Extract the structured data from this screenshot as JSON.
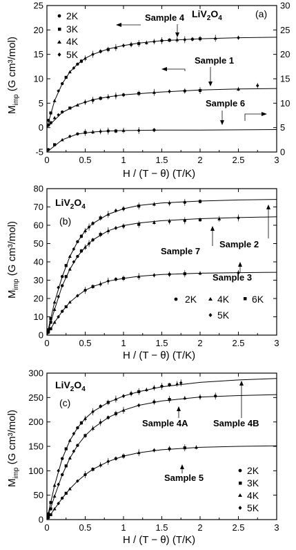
{
  "chart_data": [
    {
      "type": "scatter",
      "panel_label": "(a)",
      "compound": {
        "base": "LiV",
        "sub1": "2",
        "mid": "O",
        "sub2": "4"
      },
      "xlabel": "H / (T − θ) (T/K)",
      "ylabel": {
        "main": "M",
        "sub": "imp",
        "unit": " (G cm³/mol)"
      },
      "xlim": [
        0,
        3
      ],
      "ylim": [
        -5,
        25
      ],
      "y2lim": [
        0,
        30
      ],
      "xticks": [
        "0",
        "0.5",
        "1",
        "1.5",
        "2",
        "2.5",
        "3"
      ],
      "yticks": [
        "-5",
        "0",
        "5",
        "10",
        "15",
        "20",
        "25"
      ],
      "y2ticks": [
        "0",
        "5",
        "10",
        "15",
        "20",
        "25",
        "30"
      ],
      "legend": {
        "placement": "top-left",
        "entries": [
          {
            "label": "2K",
            "marker": "circle"
          },
          {
            "label": "3K",
            "marker": "square"
          },
          {
            "label": "4K",
            "marker": "triangle"
          },
          {
            "label": "5K",
            "marker": "diamond"
          }
        ]
      },
      "annotations": [
        {
          "text": "Sample 4",
          "x": 1.35,
          "y": 22.0
        },
        {
          "text": "Sample 1",
          "x": 2.0,
          "y": 11.8
        },
        {
          "text": "Sample 6",
          "x": 2.02,
          "y": 2.5
        }
      ],
      "series": [
        {
          "name": "Sample 4",
          "axis": "left",
          "x": [
            0.02,
            0.05,
            0.1,
            0.15,
            0.2,
            0.25,
            0.3,
            0.35,
            0.4,
            0.45,
            0.5,
            0.6,
            0.7,
            0.8,
            0.9,
            1.0,
            1.1,
            1.2,
            1.3,
            1.4,
            1.5,
            1.6,
            1.7,
            1.8,
            1.9,
            2.0,
            2.2,
            2.5
          ],
          "y": [
            1.5,
            3.0,
            5.5,
            7.5,
            9.0,
            10.3,
            11.4,
            12.2,
            13.0,
            13.6,
            14.2,
            15.0,
            15.6,
            16.0,
            16.4,
            16.8,
            17.0,
            17.2,
            17.4,
            17.6,
            17.8,
            17.9,
            18.0,
            18.0,
            18.1,
            18.2,
            18.3,
            18.4
          ],
          "fit_x": [
            0,
            0.1,
            0.2,
            0.3,
            0.4,
            0.5,
            0.6,
            0.8,
            1.0,
            1.2,
            1.5,
            2.0,
            2.5,
            3.0
          ],
          "fit_y": [
            0,
            5.5,
            9.0,
            11.4,
            13.0,
            14.2,
            15.0,
            16.1,
            16.8,
            17.3,
            17.8,
            18.2,
            18.4,
            18.5
          ]
        },
        {
          "name": "Sample 1",
          "axis": "left",
          "x": [
            0.02,
            0.05,
            0.1,
            0.15,
            0.2,
            0.3,
            0.4,
            0.5,
            0.6,
            0.7,
            0.8,
            0.9,
            1.0,
            1.2,
            1.4,
            1.6,
            1.8,
            2.0,
            2.5,
            2.75
          ],
          "y": [
            0.5,
            1.0,
            2.0,
            2.6,
            3.2,
            4.0,
            4.6,
            5.2,
            5.6,
            6.0,
            6.3,
            6.5,
            6.7,
            7.0,
            7.2,
            7.4,
            7.5,
            7.6,
            7.9,
            8.6
          ],
          "fit_x": [
            0,
            0.2,
            0.4,
            0.6,
            0.8,
            1.0,
            1.5,
            2.0,
            2.5,
            3.0
          ],
          "fit_y": [
            0,
            3.1,
            4.7,
            5.7,
            6.3,
            6.7,
            7.3,
            7.7,
            7.9,
            8.0
          ]
        },
        {
          "name": "Sample 6",
          "axis": "right",
          "x": [
            0.02,
            0.1,
            0.2,
            0.3,
            0.4,
            0.5,
            0.6,
            0.7,
            0.8,
            0.9,
            1.0,
            1.2,
            1.4
          ],
          "y": [
            0.5,
            1.5,
            2.5,
            3.2,
            3.7,
            4.0,
            4.1,
            4.2,
            4.3,
            4.3,
            4.4,
            4.4,
            4.5
          ],
          "fit_x": [
            0,
            0.2,
            0.4,
            0.6,
            0.8,
            1.0,
            1.5,
            2.0,
            3.0
          ],
          "fit_y": [
            0,
            2.5,
            3.7,
            4.1,
            4.3,
            4.4,
            4.5,
            4.5,
            4.6
          ]
        }
      ]
    },
    {
      "type": "scatter",
      "panel_label": "(b)",
      "compound": {
        "base": "LiV",
        "sub1": "2",
        "mid": "O",
        "sub2": "4"
      },
      "xlabel": "H / (T − θ) (T/K)",
      "ylabel": {
        "main": "M",
        "sub": "imp",
        "unit": " (G cm³/mol)"
      },
      "xlim": [
        0,
        3
      ],
      "ylim": [
        0,
        80
      ],
      "xticks": [
        "0",
        "0.5",
        "1",
        "1.5",
        "2",
        "2.5",
        "3"
      ],
      "yticks": [
        "0",
        "10",
        "20",
        "30",
        "40",
        "50",
        "60",
        "70",
        "80"
      ],
      "legend": {
        "placement": "bottom-right",
        "entries": [
          {
            "label": "2K",
            "marker": "circle"
          },
          {
            "label": "4K",
            "marker": "triangle"
          },
          {
            "label": "6K",
            "marker": "square"
          },
          {
            "label": "5K",
            "marker": "diamond"
          }
        ]
      },
      "annotations": [
        {
          "text": "Sample 7",
          "x": 1.55,
          "y": 53.5
        },
        {
          "text": "Sample 2",
          "x": 2.3,
          "y": 56.0
        },
        {
          "text": "Sample 3",
          "x": 2.13,
          "y": 27.5
        }
      ],
      "series": [
        {
          "name": "Sample 2",
          "x": [
            0.02,
            0.05,
            0.1,
            0.15,
            0.2,
            0.25,
            0.3,
            0.35,
            0.4,
            0.45,
            0.5,
            0.55,
            0.6,
            0.7,
            0.8,
            0.9,
            1.0,
            1.2,
            1.4,
            1.6,
            1.8,
            2.0
          ],
          "y": [
            3,
            9,
            18,
            26,
            32,
            38,
            43,
            47,
            51,
            54,
            57,
            59,
            61,
            64,
            66,
            68,
            69,
            70.5,
            71.5,
            72,
            72.5,
            73
          ],
          "fit_x": [
            0,
            0.1,
            0.2,
            0.3,
            0.4,
            0.5,
            0.6,
            0.8,
            1.0,
            1.2,
            1.5,
            2.0,
            2.5,
            3.0
          ],
          "fit_y": [
            0,
            18,
            32,
            43,
            51,
            57,
            61,
            66,
            69,
            70.8,
            72.2,
            73.2,
            73.8,
            74.1
          ]
        },
        {
          "name": "Sample 7",
          "x": [
            0.02,
            0.05,
            0.1,
            0.15,
            0.2,
            0.25,
            0.3,
            0.35,
            0.4,
            0.45,
            0.5,
            0.55,
            0.6,
            0.7,
            0.8,
            0.9,
            1.0,
            1.2,
            1.4,
            1.6,
            1.8,
            2.0,
            2.25,
            2.5
          ],
          "y": [
            2,
            7,
            14,
            21,
            27,
            32,
            36,
            40,
            43,
            46,
            48,
            50,
            52,
            55,
            57,
            58.5,
            59.5,
            60.5,
            61.5,
            62,
            62.5,
            63,
            63.5,
            64
          ],
          "fit_x": [
            0,
            0.1,
            0.2,
            0.3,
            0.4,
            0.5,
            0.6,
            0.8,
            1.0,
            1.2,
            1.5,
            2.0,
            2.5,
            3.0
          ],
          "fit_y": [
            0,
            14,
            27,
            36,
            43,
            48,
            52,
            57,
            59.8,
            61.2,
            62.5,
            63.6,
            64.2,
            64.6
          ]
        },
        {
          "name": "Sample 3",
          "x": [
            0.02,
            0.05,
            0.1,
            0.15,
            0.2,
            0.25,
            0.3,
            0.4,
            0.5,
            0.6,
            0.7,
            0.8,
            0.9,
            1.0,
            1.2,
            1.4,
            1.6,
            1.8,
            2.0,
            2.5
          ],
          "y": [
            1.5,
            3.5,
            7,
            10,
            13,
            15.5,
            18,
            21.5,
            24.5,
            26.5,
            28,
            29.5,
            30.5,
            31,
            32,
            32.7,
            33.2,
            33.5,
            33.8,
            34
          ],
          "fit_x": [
            0,
            0.1,
            0.2,
            0.3,
            0.4,
            0.5,
            0.6,
            0.8,
            1.0,
            1.2,
            1.5,
            2.0,
            2.5,
            3.0
          ],
          "fit_y": [
            0,
            7,
            13,
            18,
            21.5,
            24.5,
            26.5,
            29.5,
            31,
            32.1,
            33.1,
            33.8,
            34.1,
            34.3
          ]
        }
      ]
    },
    {
      "type": "scatter",
      "panel_label": "(c)",
      "compound": {
        "base": "LiV",
        "sub1": "2",
        "mid": "O",
        "sub2": "4"
      },
      "xlabel": "H / (T − θ) (T/K)",
      "ylabel": {
        "main": "M",
        "sub": "imp",
        "unit": " (G cm³/mol)"
      },
      "xlim": [
        0,
        3
      ],
      "ylim": [
        0,
        300
      ],
      "xticks": [
        "0",
        "0.5",
        "1",
        "1.5",
        "2",
        "2.5",
        "3"
      ],
      "yticks": [
        "0",
        "50",
        "100",
        "150",
        "200",
        "250",
        "300"
      ],
      "legend": {
        "placement": "bottom-right",
        "entries": [
          {
            "label": "2K",
            "marker": "circle"
          },
          {
            "label": "3K",
            "marker": "square"
          },
          {
            "label": "4K",
            "marker": "triangle"
          },
          {
            "label": "5K",
            "marker": "diamond"
          }
        ]
      },
      "annotations": [
        {
          "text": "Sample 4A",
          "x": 1.25,
          "y": 205
        },
        {
          "text": "Sample 4B",
          "x": 2.17,
          "y": 210
        },
        {
          "text": "Sample 5",
          "x": 1.55,
          "y": 120
        }
      ],
      "series": [
        {
          "name": "Sample 4B",
          "x": [
            0.02,
            0.05,
            0.1,
            0.15,
            0.2,
            0.25,
            0.3,
            0.35,
            0.4,
            0.45,
            0.5,
            0.6,
            0.7,
            0.8,
            0.9,
            1.0,
            1.1,
            1.2,
            1.3,
            1.4,
            1.5,
            1.6,
            1.7,
            1.75
          ],
          "y": [
            12,
            35,
            70,
            100,
            125,
            145,
            162,
            176,
            188,
            198,
            207,
            221,
            232,
            240,
            247,
            253,
            258,
            262,
            266,
            270,
            273,
            276,
            278,
            280
          ],
          "fit_x": [
            0,
            0.1,
            0.2,
            0.3,
            0.4,
            0.5,
            0.6,
            0.8,
            1.0,
            1.2,
            1.5,
            2.0,
            2.5,
            3.0
          ],
          "fit_y": [
            0,
            70,
            125,
            162,
            188,
            207,
            221,
            240,
            253,
            262,
            272,
            281,
            286,
            289
          ]
        },
        {
          "name": "Sample 4A",
          "x": [
            0.02,
            0.05,
            0.1,
            0.15,
            0.2,
            0.25,
            0.3,
            0.35,
            0.4,
            0.5,
            0.6,
            0.7,
            0.8,
            0.9,
            1.0,
            1.2,
            1.4,
            1.6,
            1.8,
            2.0,
            2.2
          ],
          "y": [
            8,
            22,
            48,
            72,
            92,
            110,
            126,
            140,
            152,
            172,
            187,
            199,
            209,
            217,
            224,
            234,
            241,
            246,
            249,
            251,
            253
          ],
          "fit_x": [
            0,
            0.1,
            0.2,
            0.3,
            0.4,
            0.5,
            0.6,
            0.8,
            1.0,
            1.2,
            1.5,
            2.0,
            2.5,
            3.0
          ],
          "fit_y": [
            0,
            48,
            92,
            126,
            152,
            172,
            187,
            209,
            224,
            234,
            243,
            251,
            254,
            256
          ]
        },
        {
          "name": "Sample 5",
          "x": [
            0.02,
            0.05,
            0.1,
            0.15,
            0.2,
            0.25,
            0.3,
            0.4,
            0.5,
            0.6,
            0.7,
            0.8,
            0.9,
            1.0,
            1.2,
            1.4,
            1.6,
            1.8,
            1.95
          ],
          "y": [
            4,
            10,
            22,
            33,
            44,
            54,
            63,
            79,
            92,
            103,
            112,
            119,
            125,
            130,
            137,
            142,
            145,
            147,
            148
          ],
          "fit_x": [
            0,
            0.1,
            0.2,
            0.3,
            0.4,
            0.5,
            0.6,
            0.8,
            1.0,
            1.2,
            1.5,
            2.0,
            2.5,
            3.0
          ],
          "fit_y": [
            0,
            22,
            44,
            63,
            79,
            92,
            103,
            119,
            130,
            137,
            143,
            148,
            150,
            151
          ]
        }
      ]
    }
  ]
}
